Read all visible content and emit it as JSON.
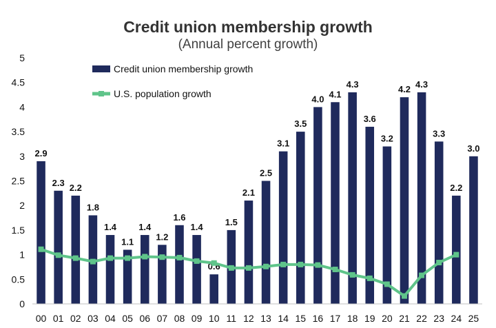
{
  "chart_data": {
    "type": "bar",
    "title": "Credit union membership growth",
    "subtitle": "(Annual percent growth)",
    "categories": [
      "00",
      "01",
      "02",
      "03",
      "04",
      "05",
      "06",
      "07",
      "08",
      "09",
      "10",
      "11",
      "12",
      "13",
      "14",
      "15",
      "16",
      "17",
      "18",
      "19",
      "20",
      "21",
      "22",
      "23",
      "24",
      "25"
    ],
    "yticks": [
      "0",
      "0.5",
      "1",
      "1.5",
      "2",
      "2.5",
      "3",
      "3.5",
      "4",
      "4.5",
      "5"
    ],
    "ylim": [
      0,
      5
    ],
    "grid": false,
    "legend_position": "top-left",
    "series": [
      {
        "name": "Credit union membership growth",
        "kind": "bar",
        "color": "#1f2a5c",
        "values": [
          2.9,
          2.3,
          2.2,
          1.8,
          1.4,
          1.1,
          1.4,
          1.2,
          1.6,
          1.4,
          0.6,
          1.5,
          2.1,
          2.5,
          3.1,
          3.5,
          4.0,
          4.1,
          4.3,
          3.6,
          3.2,
          4.2,
          4.3,
          3.3,
          2.2,
          3.0
        ],
        "labels": [
          "2.9",
          "2.3",
          "2.2",
          "1.8",
          "1.4",
          "1.1",
          "1.4",
          "1.2",
          "1.6",
          "1.4",
          "0.6",
          "1.5",
          "2.1",
          "2.5",
          "3.1",
          "3.5",
          "4.0",
          "4.1",
          "4.3",
          "3.6",
          "3.2",
          "4.2",
          "4.3",
          "3.3",
          "2.2",
          "3.0"
        ]
      },
      {
        "name": "U.S. population growth",
        "kind": "line",
        "color": "#5fc48a",
        "values": [
          1.11,
          0.99,
          0.93,
          0.86,
          0.93,
          0.93,
          0.96,
          0.95,
          0.94,
          0.87,
          0.83,
          0.73,
          0.73,
          0.76,
          0.8,
          0.8,
          0.79,
          0.7,
          0.59,
          0.52,
          0.4,
          0.16,
          0.58,
          0.84,
          1.0,
          null
        ]
      }
    ]
  }
}
